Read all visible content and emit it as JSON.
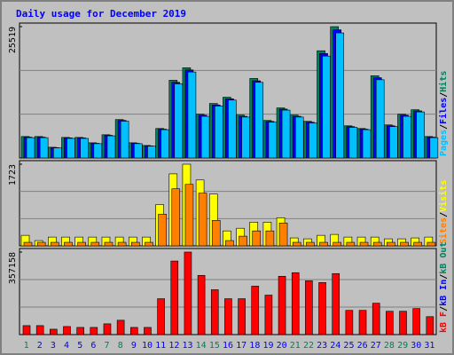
{
  "chart_data": {
    "type": "bar",
    "title": "Daily usage for December 2019",
    "categories": [
      "1",
      "2",
      "3",
      "4",
      "5",
      "6",
      "7",
      "8",
      "9",
      "10",
      "11",
      "12",
      "13",
      "14",
      "15",
      "16",
      "17",
      "18",
      "19",
      "20",
      "21",
      "22",
      "23",
      "24",
      "25",
      "26",
      "27",
      "28",
      "29",
      "30",
      "31"
    ],
    "weekend_color": "#00805c",
    "weekday_color": "#0000ff",
    "weekends": [
      true,
      false,
      false,
      false,
      false,
      false,
      true,
      true,
      false,
      false,
      false,
      false,
      false,
      true,
      true,
      false,
      false,
      false,
      false,
      false,
      true,
      true,
      false,
      false,
      false,
      false,
      false,
      true,
      true,
      false,
      false
    ],
    "panels": [
      {
        "ylim": [
          0,
          25519
        ],
        "yticks": [
          25519
        ],
        "legend": [
          {
            "text": "Pages",
            "color": "#00c0ff"
          },
          {
            "text": "/",
            "color": "#000000"
          },
          {
            "text": "Files",
            "color": "#0000ff"
          },
          {
            "text": "/",
            "color": "#000000"
          },
          {
            "text": "Hits",
            "color": "#00805c"
          }
        ],
        "series": [
          {
            "color": "#00805c",
            "values": [
              4166,
              4166,
              2083,
              3993,
              3993,
              2951,
              4514,
              7465,
              2951,
              2430,
              5729,
              15103,
              17534,
              8506,
              10590,
              11805,
              8333,
              15451,
              7291,
              9722,
              8333,
              7118,
              20832,
              25519,
              6250,
              5729,
              15971,
              6423,
              8506,
              9374,
              4166
            ]
          },
          {
            "color": "#0000ff",
            "values": [
              4050,
              4050,
              2000,
              3900,
              3900,
              2850,
              4400,
              7300,
              2850,
              2350,
              5600,
              14700,
              17100,
              8300,
              10300,
              11500,
              8100,
              15000,
              7100,
              9500,
              8100,
              6950,
              20300,
              24900,
              6100,
              5600,
              15600,
              6250,
              8300,
              9150,
              4050
            ]
          },
          {
            "color": "#00c0ff",
            "values": [
              3950,
              3950,
              1950,
              3800,
              3800,
              2780,
              4300,
              7150,
              2780,
              2300,
              5500,
              14400,
              16700,
              8100,
              10100,
              11250,
              7950,
              14700,
              6950,
              9300,
              7950,
              6800,
              19800,
              24300,
              5950,
              5500,
              15200,
              6100,
              8100,
              8950,
              3950
            ]
          }
        ]
      },
      {
        "ylim": [
          0,
          1723
        ],
        "yticks": [
          1723
        ],
        "legend": [
          {
            "text": "Sites",
            "color": "#ff8000"
          },
          {
            "text": "/",
            "color": "#000000"
          },
          {
            "text": "Visits",
            "color": "#ffff00"
          }
        ],
        "series": [
          {
            "color": "#ffff00",
            "values": [
              222,
              111,
              185,
              185,
              185,
              185,
              185,
              185,
              185,
              185,
              871,
              1519,
              1723,
              1390,
              1093,
              315,
              371,
              500,
              500,
              593,
              167,
              148,
              222,
              241,
              185,
              185,
              185,
              148,
              148,
              167,
              185
            ]
          },
          {
            "color": "#ff8000",
            "values": [
              74,
              74,
              74,
              74,
              74,
              74,
              74,
              74,
              74,
              74,
              667,
              1204,
              1297,
              1112,
              537,
              111,
              204,
              315,
              315,
              482,
              74,
              74,
              74,
              74,
              74,
              74,
              74,
              74,
              74,
              74,
              74
            ]
          }
        ]
      },
      {
        "ylim": [
          0,
          357158
        ],
        "yticks": [
          357158
        ],
        "legend": [
          {
            "text": "kB F",
            "color": "#ff0000"
          },
          {
            "text": "/",
            "color": "#000000"
          },
          {
            "text": "kB In",
            "color": "#0000ff"
          },
          {
            "text": "/",
            "color": "#000000"
          },
          {
            "text": "kB Out",
            "color": "#00805c"
          }
        ],
        "series": [
          {
            "color": "#ff0000",
            "values": [
              38822,
              38822,
              23293,
              34940,
              31057,
              31057,
              46586,
              62114,
              31057,
              31057,
              155286,
              318337,
              357158,
              256222,
              194108,
              155286,
              155286,
              209636,
              170815,
              252340,
              267869,
              232929,
              225165,
              263986,
              104818,
              104818,
              135876,
              100936,
              100936,
              112582,
              77643
            ]
          }
        ]
      }
    ]
  }
}
